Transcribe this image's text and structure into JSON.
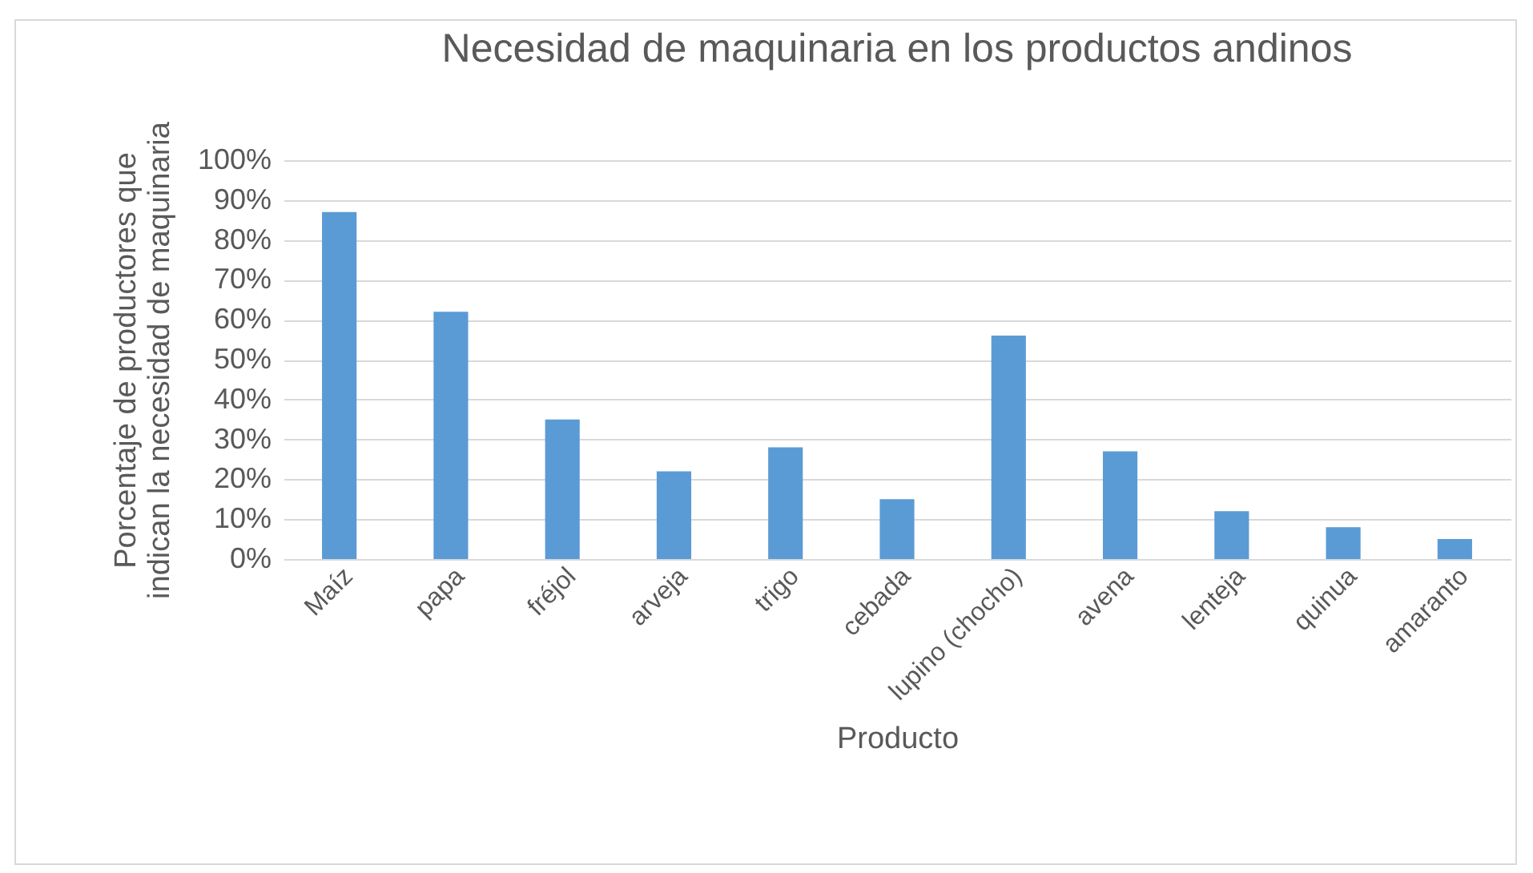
{
  "chart_data": {
    "type": "bar",
    "title": "Necesidad de maquinaria en los productos andinos",
    "xlabel": "Producto",
    "ylabel": "Porcentaje de productores que indican la necesidad de maquinaria",
    "categories": [
      "Maíz",
      "papa",
      "fréjol",
      "arveja",
      "trigo",
      "cebada",
      "lupino (chocho)",
      "avena",
      "lenteja",
      "quinua",
      "amaranto"
    ],
    "values": [
      87,
      62,
      35,
      22,
      28,
      15,
      56,
      27,
      12,
      8,
      5
    ],
    "color": "#5b9bd5",
    "ylim": [
      0,
      100
    ],
    "yticks": [
      {
        "value": 0,
        "label": "0%"
      },
      {
        "value": 10,
        "label": "10%"
      },
      {
        "value": 20,
        "label": "20%"
      },
      {
        "value": 30,
        "label": "30%"
      },
      {
        "value": 40,
        "label": "40%"
      },
      {
        "value": 50,
        "label": "50%"
      },
      {
        "value": 60,
        "label": "60%"
      },
      {
        "value": 70,
        "label": "70%"
      },
      {
        "value": 80,
        "label": "80%"
      },
      {
        "value": 90,
        "label": "90%"
      },
      {
        "value": 100,
        "label": "100%"
      }
    ],
    "grid": "y"
  }
}
